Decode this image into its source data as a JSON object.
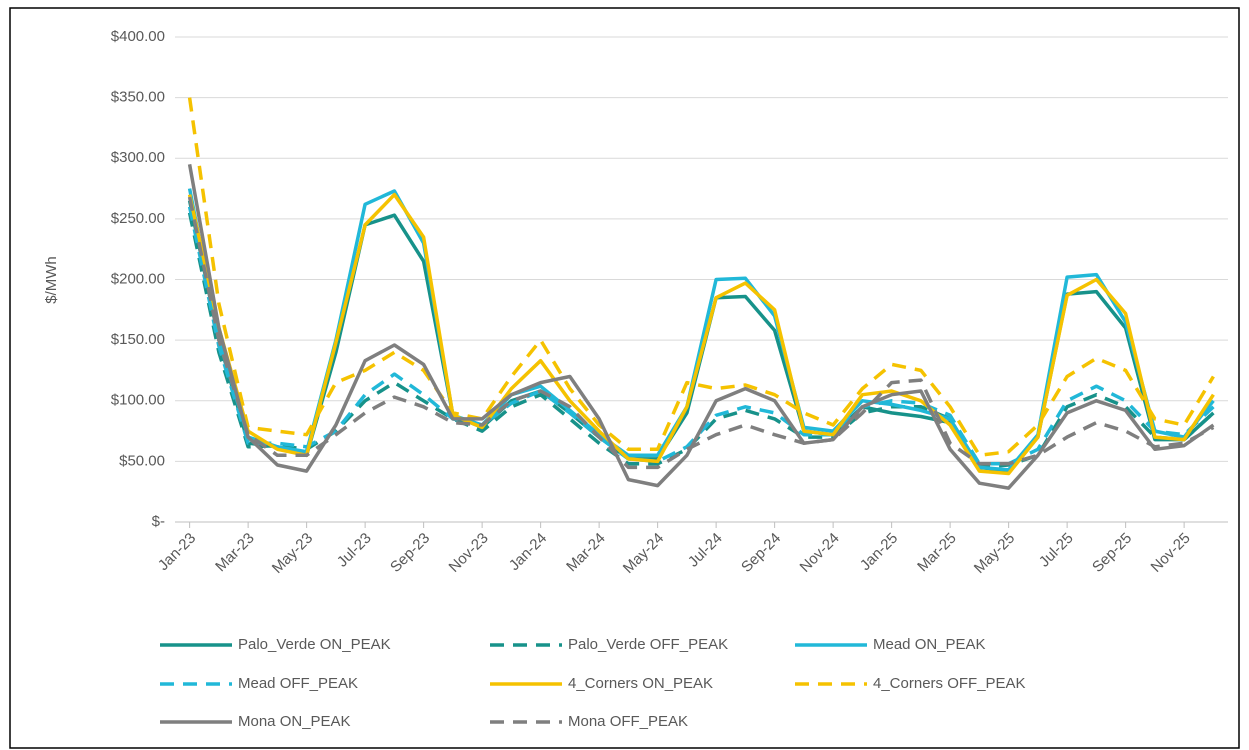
{
  "chart_data": {
    "type": "line",
    "y_label": "$/MWh",
    "categories": [
      "Jan-23",
      null,
      "Mar-23",
      null,
      "May-23",
      null,
      "Jul-23",
      null,
      "Sep-23",
      null,
      "Nov-23",
      null,
      "Jan-24",
      null,
      "Mar-24",
      null,
      "May-24",
      null,
      "Jul-24",
      null,
      "Sep-24",
      null,
      "Nov-24",
      null,
      "Jan-25",
      null,
      "Mar-25",
      null,
      "May-25",
      null,
      "Jul-25",
      null,
      "Sep-25",
      null,
      "Nov-25",
      null
    ],
    "ylim": [
      0,
      400
    ],
    "yticks": [
      {
        "value": 0,
        "label": "$-"
      },
      {
        "value": 50,
        "label": "$50.00"
      },
      {
        "value": 100,
        "label": "$100.00"
      },
      {
        "value": 150,
        "label": "$150.00"
      },
      {
        "value": 200,
        "label": "$200.00"
      },
      {
        "value": 250,
        "label": "$250.00"
      },
      {
        "value": 300,
        "label": "$300.00"
      },
      {
        "value": 350,
        "label": "$350.00"
      },
      {
        "value": 400,
        "label": "$400.00"
      }
    ],
    "grid": true,
    "legend": "bottom",
    "series": [
      {
        "name": "Palo_Verde ON_PEAK",
        "color": "#17928a",
        "style": "solid",
        "values": [
          265,
          150,
          65,
          62,
          55,
          140,
          245,
          253,
          215,
          88,
          78,
          100,
          108,
          90,
          70,
          52,
          52,
          90,
          185,
          186,
          158,
          75,
          72,
          95,
          90,
          87,
          82,
          45,
          42,
          70,
          188,
          190,
          160,
          68,
          68,
          90
        ]
      },
      {
        "name": "Palo_Verde OFF_PEAK",
        "color": "#17928a",
        "style": "dashed",
        "values": [
          255,
          140,
          62,
          63,
          60,
          75,
          100,
          115,
          100,
          85,
          75,
          95,
          105,
          85,
          65,
          48,
          48,
          60,
          85,
          92,
          85,
          70,
          70,
          90,
          95,
          95,
          85,
          45,
          47,
          55,
          95,
          105,
          95,
          70,
          68,
          90
        ]
      },
      {
        "name": "Mead ON_PEAK",
        "color": "#21b8d8",
        "style": "solid",
        "values": [
          275,
          150,
          70,
          62,
          58,
          150,
          262,
          273,
          230,
          88,
          80,
          105,
          112,
          92,
          72,
          55,
          55,
          95,
          200,
          201,
          170,
          78,
          75,
          100,
          97,
          92,
          85,
          45,
          43,
          72,
          202,
          204,
          165,
          75,
          70,
          100
        ]
      },
      {
        "name": "Mead OFF_PEAK",
        "color": "#21b8d8",
        "style": "dashed",
        "values": [
          260,
          145,
          65,
          65,
          62,
          75,
          105,
          122,
          105,
          85,
          80,
          98,
          108,
          90,
          70,
          52,
          50,
          62,
          88,
          95,
          90,
          72,
          72,
          95,
          100,
          98,
          88,
          48,
          48,
          60,
          100,
          112,
          100,
          75,
          72,
          95
        ]
      },
      {
        "name": "4_Corners ON_PEAK",
        "color": "#f5c200",
        "style": "solid",
        "values": [
          270,
          160,
          75,
          60,
          55,
          148,
          245,
          270,
          235,
          88,
          78,
          110,
          133,
          100,
          75,
          52,
          50,
          95,
          185,
          197,
          175,
          75,
          72,
          105,
          108,
          100,
          80,
          42,
          40,
          70,
          187,
          200,
          172,
          70,
          68,
          105
        ]
      },
      {
        "name": "4_Corners OFF_PEAK",
        "color": "#f5c200",
        "style": "dashed",
        "values": [
          350,
          180,
          78,
          75,
          72,
          115,
          125,
          140,
          125,
          90,
          85,
          120,
          150,
          110,
          80,
          60,
          60,
          115,
          110,
          113,
          105,
          90,
          80,
          110,
          130,
          125,
          95,
          55,
          58,
          80,
          120,
          135,
          125,
          85,
          80,
          120
        ]
      },
      {
        "name": "Mona ON_PEAK",
        "color": "#7f7f7f",
        "style": "solid",
        "values": [
          295,
          160,
          70,
          47,
          42,
          80,
          133,
          146,
          130,
          85,
          85,
          105,
          115,
          120,
          85,
          35,
          30,
          55,
          100,
          110,
          100,
          65,
          68,
          95,
          105,
          108,
          60,
          32,
          28,
          55,
          90,
          100,
          92,
          60,
          63,
          80
        ]
      },
      {
        "name": "Mona OFF_PEAK",
        "color": "#7f7f7f",
        "style": "dashed",
        "values": [
          268,
          150,
          72,
          55,
          55,
          72,
          90,
          103,
          95,
          82,
          80,
          100,
          108,
          95,
          70,
          45,
          45,
          60,
          72,
          80,
          72,
          65,
          68,
          90,
          115,
          117,
          65,
          48,
          48,
          55,
          70,
          82,
          75,
          62,
          65,
          78
        ]
      }
    ]
  }
}
